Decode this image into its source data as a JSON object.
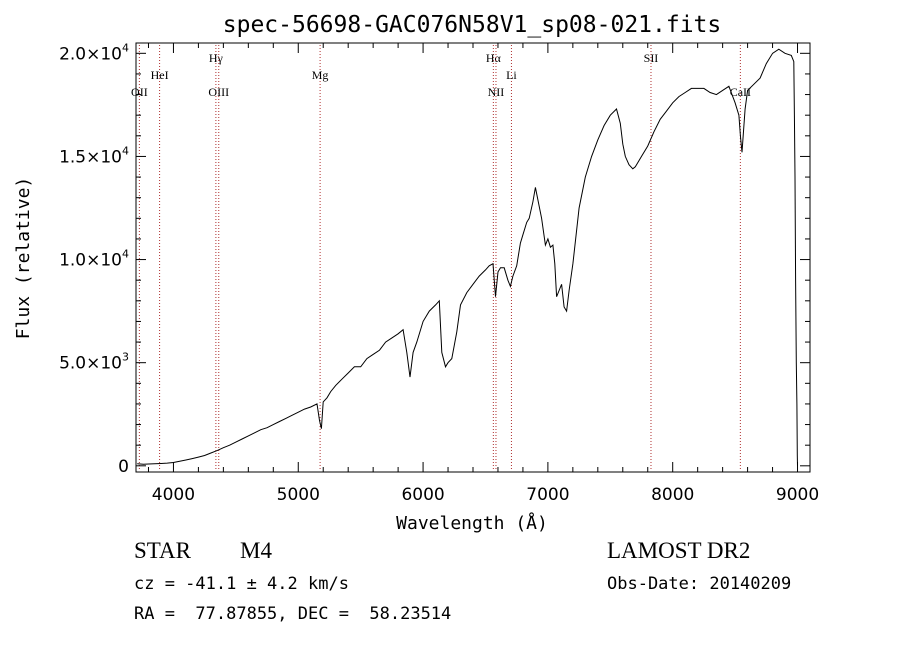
{
  "chart_data": {
    "type": "line",
    "title": "spec-56698-GAC076N58V1_sp08-021.fits",
    "xlabel": "Wavelength (Å)",
    "ylabel": "Flux (relative)",
    "xlim": [
      3700,
      9100
    ],
    "ylim": [
      -300,
      20500
    ],
    "xticks": [
      {
        "value": 4000,
        "label": "4000"
      },
      {
        "value": 5000,
        "label": "5000"
      },
      {
        "value": 6000,
        "label": "6000"
      },
      {
        "value": 7000,
        "label": "7000"
      },
      {
        "value": 8000,
        "label": "8000"
      },
      {
        "value": 9000,
        "label": "9000"
      }
    ],
    "yticks": [
      {
        "value": 0,
        "mantissa": "0",
        "exponent": ""
      },
      {
        "value": 5000,
        "mantissa": "5.0×10",
        "exponent": "3"
      },
      {
        "value": 10000,
        "mantissa": "1.0×10",
        "exponent": "4"
      },
      {
        "value": 15000,
        "mantissa": "1.5×10",
        "exponent": "4"
      },
      {
        "value": 20000,
        "mantissa": "2.0×10",
        "exponent": "4"
      }
    ],
    "grid": false,
    "line_color": "#000000",
    "marker_line_color": "#b03030",
    "series": [
      {
        "x": [
          3710,
          3760,
          3800,
          3850,
          3900,
          3950,
          4000,
          4050,
          4100,
          4150,
          4200,
          4250,
          4300,
          4350,
          4400,
          4450,
          4500,
          4550,
          4600,
          4650,
          4700,
          4750,
          4800,
          4850,
          4900,
          4950,
          5000,
          5050,
          5100,
          5150,
          5170,
          5185,
          5200,
          5230,
          5260,
          5300,
          5350,
          5400,
          5450,
          5500,
          5550,
          5600,
          5650,
          5700,
          5750,
          5800,
          5840,
          5870,
          5895,
          5920,
          5950,
          6000,
          6050,
          6100,
          6130,
          6150,
          6180,
          6200,
          6230,
          6270,
          6300,
          6350,
          6400,
          6450,
          6500,
          6530,
          6560,
          6580,
          6600,
          6620,
          6650,
          6680,
          6700,
          6720,
          6750,
          6780,
          6800,
          6830,
          6850,
          6880,
          6900,
          6950,
          6980,
          7000,
          7020,
          7040,
          7055,
          7070,
          7090,
          7110,
          7130,
          7150,
          7170,
          7200,
          7250,
          7300,
          7350,
          7400,
          7450,
          7500,
          7550,
          7580,
          7600,
          7620,
          7650,
          7680,
          7700,
          7720,
          7750,
          7800,
          7850,
          7900,
          7950,
          8000,
          8050,
          8100,
          8150,
          8200,
          8250,
          8300,
          8350,
          8400,
          8450,
          8500,
          8530,
          8542,
          8555,
          8580,
          8600,
          8650,
          8700,
          8750,
          8800,
          8850,
          8900,
          8950,
          8970,
          8975,
          8980,
          8985,
          8990,
          8995,
          8998,
          9000
        ],
        "y": [
          100,
          80,
          90,
          100,
          110,
          130,
          160,
          220,
          280,
          350,
          420,
          500,
          620,
          740,
          880,
          1000,
          1150,
          1300,
          1450,
          1600,
          1750,
          1850,
          2000,
          2150,
          2300,
          2450,
          2600,
          2750,
          2850,
          3000,
          2200,
          1800,
          3100,
          3300,
          3600,
          3900,
          4200,
          4500,
          4800,
          4800,
          5200,
          5400,
          5600,
          6000,
          6200,
          6400,
          6600,
          5500,
          4300,
          5500,
          6000,
          7000,
          7500,
          7800,
          8000,
          5500,
          4800,
          5000,
          5200,
          6500,
          7800,
          8400,
          8800,
          9200,
          9500,
          9700,
          9800,
          8200,
          9400,
          9600,
          9600,
          9000,
          8700,
          9200,
          9700,
          10800,
          11200,
          11800,
          12000,
          12800,
          13500,
          12000,
          10700,
          11000,
          10600,
          10700,
          9800,
          8200,
          8500,
          8800,
          7700,
          7500,
          8500,
          9800,
          12500,
          14000,
          15000,
          15800,
          16500,
          17000,
          17300,
          16600,
          15600,
          15000,
          14600,
          14400,
          14500,
          14700,
          15000,
          15500,
          16200,
          16800,
          17200,
          17600,
          17900,
          18100,
          18300,
          18300,
          18300,
          18100,
          18000,
          18200,
          18400,
          17600,
          17000,
          16000,
          15200,
          17300,
          18200,
          18500,
          18800,
          19500,
          20000,
          20200,
          20000,
          19900,
          19600,
          17000,
          14000,
          9000,
          5000,
          3000,
          500,
          0
        ]
      }
    ],
    "lines": [
      {
        "label": "OII",
        "x": 3727,
        "tier": "low"
      },
      {
        "label": "HeI",
        "x": 3889,
        "tier": "mid"
      },
      {
        "label": "Hγ",
        "x": 4340,
        "tier": "high"
      },
      {
        "label": "OIII",
        "x": 4363,
        "tier": "low"
      },
      {
        "label": "Mg",
        "x": 5175,
        "tier": "mid"
      },
      {
        "label": "Hα",
        "x": 6563,
        "tier": "high"
      },
      {
        "label": "NII",
        "x": 6584,
        "tier": "low"
      },
      {
        "label": "Li",
        "x": 6708,
        "tier": "mid"
      },
      {
        "label": "SII",
        "x": 7826,
        "tier": "high"
      },
      {
        "label": "CaII",
        "x": 8542,
        "tier": "low"
      }
    ]
  },
  "info": {
    "object_class": "STAR",
    "subclass": "M4",
    "survey": "LAMOST DR2",
    "redshift_line": "cz = -41.1 ± 4.2 km/s",
    "obs_date_line": "Obs-Date: 20140209",
    "coords_line": "RA =  77.87855, DEC =  58.23514"
  }
}
